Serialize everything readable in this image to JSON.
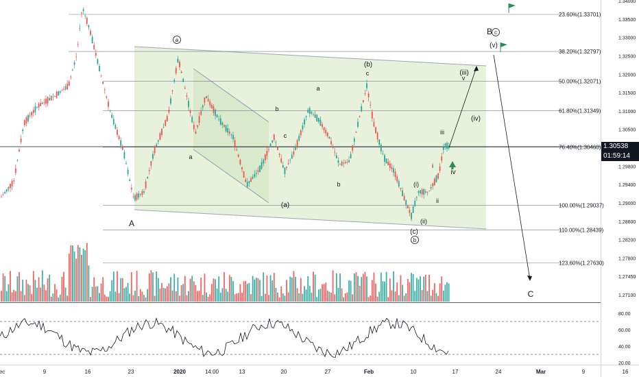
{
  "chart_data": {
    "type": "candlestick",
    "price_axis": {
      "ticks": [
        "1.34000",
        "1.33500",
        "1.33000",
        "1.32500",
        "1.32000",
        "1.31500",
        "1.31000",
        "1.30500",
        "1.30000",
        "1.29800",
        "1.29400",
        "1.29000",
        "1.28600",
        "1.28200",
        "1.27800",
        "1.27450",
        "1.27100"
      ]
    },
    "time_axis": {
      "ticks": [
        "Dec",
        "9",
        "16",
        "23",
        "2020",
        "14:00",
        "13",
        "20",
        "27",
        "Feb",
        "10",
        "17",
        "24",
        "Mar",
        "9",
        "16"
      ]
    },
    "current_price": "1.30538",
    "countdown": "01:59:14",
    "fib_levels": [
      {
        "label": "23.60%(1.33701)",
        "value": 1.33701
      },
      {
        "label": "38.20%(1.32797)",
        "value": 1.32797
      },
      {
        "label": "50.00%(1.32071)",
        "value": 1.32071
      },
      {
        "label": "61.80%(1.31349)",
        "value": 1.31349
      },
      {
        "label": "76.40%(1.30460)",
        "value": 1.3046
      },
      {
        "label": "100.00%(1.29037)",
        "value": 1.29037
      },
      {
        "label": "110.00%(1.28439)",
        "value": 1.28439
      },
      {
        "label": "123.60%(1.27630)",
        "value": 1.2763
      }
    ],
    "wave_labels": [
      "A",
      "a",
      "a",
      "b",
      "c",
      "(a)",
      "a",
      "b",
      "(b)",
      "c",
      "(c)",
      "b",
      "(i)",
      "(ii)",
      "i",
      "ii",
      "iii",
      "iv",
      "(iii)",
      "v",
      "(iv)",
      "(v)",
      "B",
      "C"
    ],
    "circled_labels": [
      "a",
      "b",
      "c"
    ],
    "rsi": {
      "ticks": [
        "80.00",
        "60.00",
        "40.00",
        "20.00"
      ],
      "upper": 70,
      "lower": 30
    },
    "colors": {
      "up": "#26a69a",
      "down": "#ef5350",
      "channel_fill": "#dfecd0",
      "flag": "#2e8b57",
      "current_price_badge": "#131722",
      "countdown_badge": "#131722"
    }
  }
}
